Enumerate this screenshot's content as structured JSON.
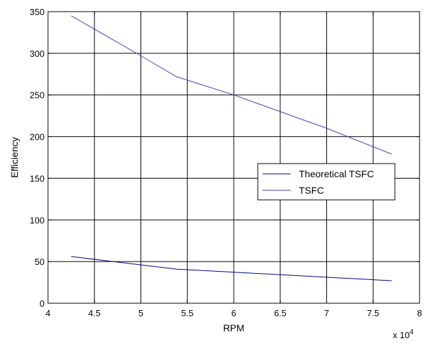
{
  "chart_data": {
    "type": "line",
    "title": "",
    "xlabel": "RPM",
    "ylabel": "Efficiency",
    "x_multiplier_label": "x 10",
    "x_multiplier_exponent": "4",
    "xlim": [
      4,
      8
    ],
    "ylim": [
      0,
      350
    ],
    "xticks": [
      4,
      4.5,
      5,
      5.5,
      6,
      6.5,
      7,
      7.5,
      8
    ],
    "xtick_labels": [
      "4",
      "4.5",
      "5",
      "5.5",
      "6",
      "6.5",
      "7",
      "7.5",
      "8"
    ],
    "yticks": [
      0,
      50,
      100,
      150,
      200,
      250,
      300,
      350
    ],
    "ytick_labels": [
      "0",
      "50",
      "100",
      "150",
      "200",
      "250",
      "300",
      "350"
    ],
    "grid": true,
    "legend_position": "right",
    "series": [
      {
        "name": "Theoretical TSFC",
        "color": "#00007f",
        "x": [
          4.25,
          5.38,
          7.7
        ],
        "y": [
          56,
          41,
          27
        ]
      },
      {
        "name": "TSFC",
        "color": "#3f3fbf",
        "x": [
          4.25,
          5.0,
          5.38,
          6.0,
          7.0,
          7.7
        ],
        "y": [
          345,
          297,
          272,
          250,
          210,
          179
        ]
      }
    ]
  }
}
